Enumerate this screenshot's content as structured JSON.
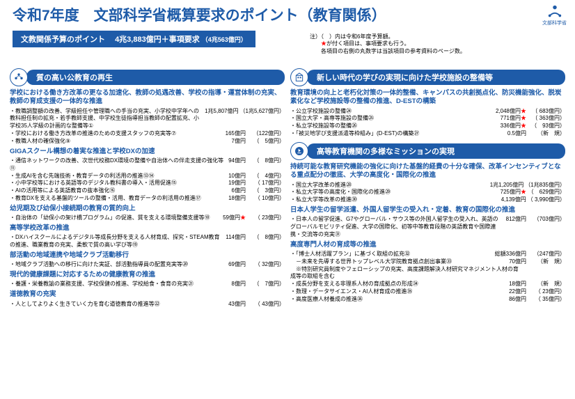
{
  "header": {
    "title": "令和7年度　文部科学省概算要求のポイント（教育関係）",
    "logoText": "文部科学省"
  },
  "subtitle": {
    "label": "文教関係予算のポイント",
    "amount": "4兆3,883億円＋事項要求",
    "prev": "（4兆563億円）"
  },
  "notes": {
    "l1": "注）（　）内は令和6年度予算額。",
    "l2mark": "★",
    "l2rest": "が付く項目は、事項要求も行う。",
    "l3": "　　各項目の右側の丸数字は当該項目の参考資料のページ数。"
  },
  "left": {
    "s1": {
      "title": "質の高い公教育の再生"
    },
    "g1": {
      "head": "学校における働き方改革の更なる加速化、教師の処遇改善、学校の指導・運営体制の充実、教師の育成支援の一体的な推進",
      "items": [
        {
          "t": "・教職調整額の改善、学級担任や管理職への手当の充実、小学校中学年への教科担任制の拡充・若手教師支援、中学校生徒指導担当教師の配置拡充、小学校35人学級の計画的な整備等",
          "a": "1兆5,807億円",
          "p": "（1兆5,627億円）",
          "c": "①"
        },
        {
          "t": "・学校における働き方改革の推進のための支援スタッフの充実等",
          "a": "165億円",
          "p": "（122億円）",
          "c": "⑦"
        },
        {
          "t": "・教職人材の確保強化",
          "a": "7億円",
          "p": "（　5億円）",
          "c": "⑨"
        }
      ]
    },
    "g2": {
      "head": "GIGAスクール構想の着実な推進と学校DXの加速",
      "items": [
        {
          "t": "・通信ネットワークの改善、次世代校務DX環境の整備や自治体への伴走支援の強化等",
          "a": "94億円",
          "p": "（　8億円）",
          "c": "⑪"
        },
        {
          "t": "・生成AIを含む先端技術・教育データの利活用の推進",
          "a": "10億円",
          "p": "（　4億円）",
          "c": "⑬⑭"
        },
        {
          "t": "・小中学校等における英語等のデジタル教科書の導入・活用促進",
          "a": "19億円",
          "p": "（ 17億円）",
          "c": "⑮"
        },
        {
          "t": "・AIの活用等による英語教育の抜本強化",
          "a": "6億円",
          "p": "（　3億円）",
          "c": "⑯"
        },
        {
          "t": "・教育DXを支える基盤的ツールの整備・活用、教育データの利活用の推進",
          "a": "18億円",
          "p": "（ 10億円）",
          "c": "⑰"
        }
      ]
    },
    "g3": {
      "head": "幼児期及び幼保小接続期の教育の質的向上",
      "items": [
        {
          "t": "・自治体の「幼保小の架け橋プログラム」の促進、質を支える環境整備支援等",
          "a": "59億円",
          "p": "（ 23億円）",
          "c": "⑱",
          "star": true
        }
      ]
    },
    "g4": {
      "head": "高等学校改革の推進",
      "items": [
        {
          "t": "・DXハイスクールによるデジタル等成長分野を支える人材育成、探究・STEAM教育の推進、職業教育の充実、柔軟で質の高い学び等",
          "a": "114億円",
          "p": "（　8億円）",
          "c": "⑲"
        }
      ]
    },
    "g5": {
      "head": "部活動の地域連携や地域クラブ活動移行",
      "items": [
        {
          "t": "・地域クラブ活動への移行に向けた実証、部活動指導員の配置充実等",
          "a": "69億円",
          "p": "（ 32億円）",
          "c": "⑳"
        }
      ]
    },
    "g6": {
      "head": "現代的健康課題に対応するための健康教育の推進",
      "items": [
        {
          "t": "・養護・栄養教諭の業務支援、学校保健の推進、学校給食・食育の充実",
          "a": "8億円",
          "p": "（　7億円）",
          "c": "㉑"
        }
      ]
    },
    "g7": {
      "head": "道徳教育の充実",
      "items": [
        {
          "t": "・人としてよりよく生きていく力を育む道徳教育の推進等",
          "a": "43億円",
          "p": "（ 43億円）",
          "c": "㉒"
        }
      ]
    }
  },
  "right": {
    "s2": {
      "title": "新しい時代の学びの実現に向けた学校施設の整備等"
    },
    "g1": {
      "head": "教育環境の向上と老朽化対策の一体的整備、キャンパスの共創拠点化、防災機能強化、脱炭素化など学校施設等の整備の推進、D-ESTの構築",
      "items": [
        {
          "t": "・公立学校施設の整備",
          "a": "2,048億円",
          "p": "（ 683億円）",
          "c": "㉔",
          "star": true
        },
        {
          "t": "・国立大学・高専等施設の整備",
          "a": "771億円",
          "p": "（ 363億円）",
          "c": "㉕",
          "star": true
        },
        {
          "t": "・私立学校施設等の整備",
          "a": "336億円",
          "p": "（　93億円）",
          "c": "㉖",
          "star": true
        },
        {
          "t": "・「被災地学び支援派遣等枠組み」(D-EST)の構築",
          "a": "0.5億円",
          "p": "（新　規）",
          "c": "㉗"
        }
      ]
    },
    "s3": {
      "title": "高等教育機関の多様なミッションの実現"
    },
    "g2": {
      "head": "持続可能な教育研究機能の強化に向けた基盤的経費の十分な確保、改革インセンティブとなる重点配分の徹底、大学の高度化・国際化の推進",
      "items": [
        {
          "t": "・国立大学改革の推進",
          "a": "1兆1,205億円",
          "p": "（1兆835億円）",
          "c": "㉘"
        },
        {
          "t": "・私立大学等の高度化・国際化の推進",
          "a": "725億円",
          "p": "（　629億円）",
          "c": "㉙",
          "star": true
        },
        {
          "t": "・私立大学等改革の推進",
          "a": "4,139億円",
          "p": "（ 3,990億円）",
          "c": "㉚"
        }
      ]
    },
    "g3": {
      "head": "日本人学生の留学派遣、外国人留学生の受入れ・定着、教育の国際化の推進",
      "items": [
        {
          "t": "・日本人の留学促進、G7やグローバル・サウス等の外国人留学生の受入れ、英語のグローバルモビリティ促進、大学の国際化、初等中等教育段階の英語教育や国際連携・交流等の充実",
          "a": "812億円",
          "p": "（703億円）",
          "c": "㉛"
        }
      ]
    },
    "g4": {
      "head": "高度専門人材の育成等の推進",
      "items": [
        {
          "t": "・「博士人材活躍プラン」に基づく取組の拡充",
          "a": "総額336億円",
          "p": "（247億円）",
          "c": "㉜"
        },
        {
          "t": "　－未来を先導する世界トップレベル大学院教育拠点創出事業",
          "a": "70億円",
          "p": "（新　規）",
          "c": "㉝"
        },
        {
          "t": "　※特別研究員制度やフェローシップの充実、高度課題解決人材研究マネジメント人材の育成等の取組を含む",
          "a": "",
          "p": "",
          "c": ""
        },
        {
          "t": "・成長分野を支える非理系人材の育成拠点の形成",
          "a": "18億円",
          "p": "（新　規）",
          "c": "㉞"
        },
        {
          "t": "・数理・データサイエンス・AI人材育成の推進",
          "a": "22億円",
          "p": "（ 23億円）",
          "c": "㉟"
        },
        {
          "t": "・高度医療人材養成の推進",
          "a": "86億円",
          "p": "（ 35億円）",
          "c": "㊱"
        }
      ]
    }
  }
}
